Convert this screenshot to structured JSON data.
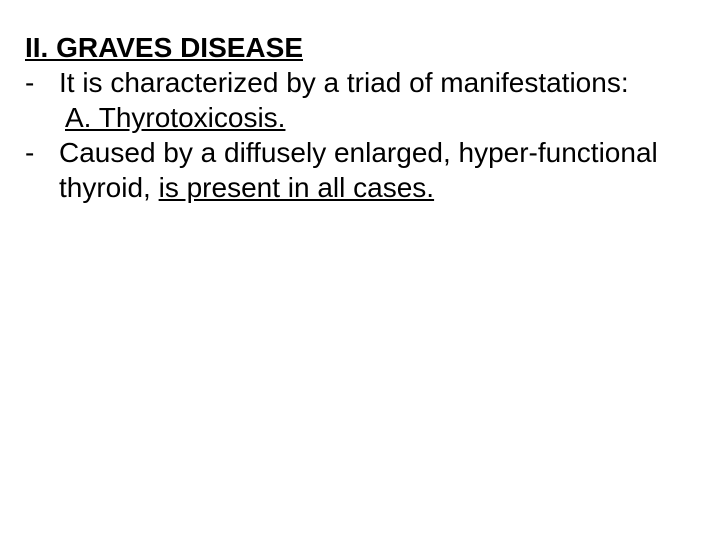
{
  "slide": {
    "background_color": "#ffffff",
    "text_color": "#000000",
    "font_family": "Arial, Helvetica, sans-serif",
    "font_size_pt": 28,
    "line_height": 1.25,
    "heading": {
      "prefix": " ",
      "text": "II. GRAVES DISEASE",
      "bold": true,
      "underline": true
    },
    "items": [
      {
        "marker": "-",
        "text": "It is characterized by a triad of manifestations:",
        "bold": false,
        "underline": false
      },
      {
        "marker": "",
        "text": "A. Thyrotoxicosis.",
        "bold": false,
        "underline": true,
        "indent": true
      },
      {
        "marker": "-",
        "text_parts": {
          "plain": "  Caused by a diffusely enlarged, hyper-functional thyroid, ",
          "underlined": "is present in all cases."
        },
        "bold": false
      }
    ]
  }
}
